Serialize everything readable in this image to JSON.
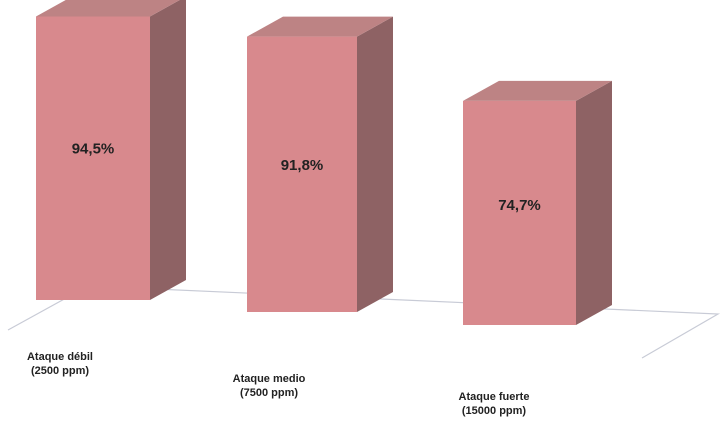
{
  "chart_data": {
    "type": "bar",
    "style": "3d-column",
    "categories": [
      {
        "name": "Ataque débil",
        "detail": "(2500 ppm)"
      },
      {
        "name": "Ataque medio",
        "detail": "(7500 ppm)"
      },
      {
        "name": "Ataque fuerte",
        "detail": "(15000 ppm)"
      }
    ],
    "values": [
      94.5,
      91.8,
      74.7
    ],
    "value_labels": [
      "94,5%",
      "91,8%",
      "74,7%"
    ],
    "unit": "%",
    "ylim": [
      0,
      100
    ],
    "grid": false,
    "legend": "none",
    "colors": {
      "bar_front": "#D8898D",
      "bar_side": "#8E6264",
      "bar_top": "#BD8384",
      "floor_line": "#C8CBD6",
      "label_text": "#222222"
    }
  }
}
